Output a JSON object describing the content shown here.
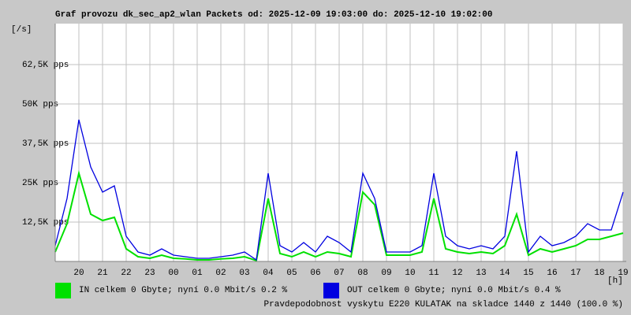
{
  "chart_data": {
    "type": "line",
    "title": "Graf provozu dk_sec_ap2_wlan Packets od: 2025-12-09 19:03:00 do: 2025-12-10 19:02:00",
    "y_axis_label": "[/s]",
    "x_axis_label": "[h]",
    "x": [
      19,
      19.5,
      20,
      20.5,
      21,
      21.5,
      22,
      22.5,
      23,
      23.5,
      24,
      24.5,
      25,
      25.5,
      26,
      26.5,
      27,
      27.5,
      28,
      28.5,
      29,
      29.5,
      30,
      30.5,
      31,
      31.5,
      32,
      32.5,
      33,
      33.5,
      34,
      34.5,
      35,
      35.5,
      36,
      36.5,
      37,
      37.5,
      38,
      38.5,
      39,
      39.5,
      40,
      40.5,
      41,
      41.5,
      42,
      42.5,
      43
    ],
    "series": [
      {
        "name": "IN celkem 0 Gbyte; nyní   0.0 Mbit/s 0.2 %",
        "color": "#00e000",
        "values": [
          3000,
          12000,
          28000,
          15000,
          13000,
          14000,
          4000,
          1500,
          1000,
          2000,
          1000,
          800,
          500,
          500,
          800,
          1000,
          1500,
          300,
          20000,
          2500,
          1500,
          3000,
          1500,
          3000,
          2500,
          1500,
          22000,
          18000,
          2000,
          2000,
          2000,
          3000,
          20000,
          4000,
          3000,
          2500,
          3000,
          2500,
          5000,
          15000,
          2000,
          4000,
          3000,
          4000,
          5000,
          7000,
          7000,
          8000,
          9000
        ]
      },
      {
        "name": "OUT celkem 0 Gbyte; nyní   0.0 Mbit/s 0.4 %",
        "color": "#0000e0",
        "values": [
          5000,
          20000,
          45000,
          30000,
          22000,
          24000,
          8000,
          3000,
          2000,
          4000,
          2000,
          1500,
          1000,
          1000,
          1500,
          2000,
          3000,
          500,
          28000,
          5000,
          3000,
          6000,
          3000,
          8000,
          6000,
          3000,
          28000,
          20000,
          3000,
          3000,
          3000,
          5000,
          28000,
          8000,
          5000,
          4000,
          5000,
          4000,
          8000,
          35000,
          3000,
          8000,
          5000,
          6000,
          8000,
          12000,
          10000,
          10000,
          22000
        ]
      }
    ],
    "xlim": [
      19,
      43
    ],
    "xticks": [
      20,
      21,
      22,
      23,
      {
        "value": 24,
        "label": "00"
      },
      {
        "value": 25,
        "label": "01"
      },
      {
        "value": 26,
        "label": "02"
      },
      {
        "value": 27,
        "label": "03"
      },
      {
        "value": 28,
        "label": "04"
      },
      {
        "value": 29,
        "label": "05"
      },
      {
        "value": 30,
        "label": "06"
      },
      {
        "value": 31,
        "label": "07"
      },
      {
        "value": 32,
        "label": "08"
      },
      {
        "value": 33,
        "label": "09"
      },
      {
        "value": 34,
        "label": "10"
      },
      {
        "value": 35,
        "label": "11"
      },
      {
        "value": 36,
        "label": "12"
      },
      {
        "value": 37,
        "label": "13"
      },
      {
        "value": 38,
        "label": "14"
      },
      {
        "value": 39,
        "label": "15"
      },
      {
        "value": 40,
        "label": "16"
      },
      {
        "value": 41,
        "label": "17"
      },
      {
        "value": 42,
        "label": "18"
      },
      {
        "value": 43,
        "label": "19"
      }
    ],
    "ylim": [
      0,
      75000
    ],
    "yticks": [
      {
        "value": 12500,
        "label": "12,5K pps"
      },
      {
        "value": 25000,
        "label": "25K pps"
      },
      {
        "value": 37500,
        "label": "37,5K pps"
      },
      {
        "value": 50000,
        "label": "50K pps"
      },
      {
        "value": 62500,
        "label": "62,5K pps"
      }
    ],
    "grid": true,
    "annotation": "Pravdepodobnost vyskytu E220 KULATAK na skladce 1440 z 1440 (100.0 %)",
    "annotation_color": "#ff0000"
  }
}
